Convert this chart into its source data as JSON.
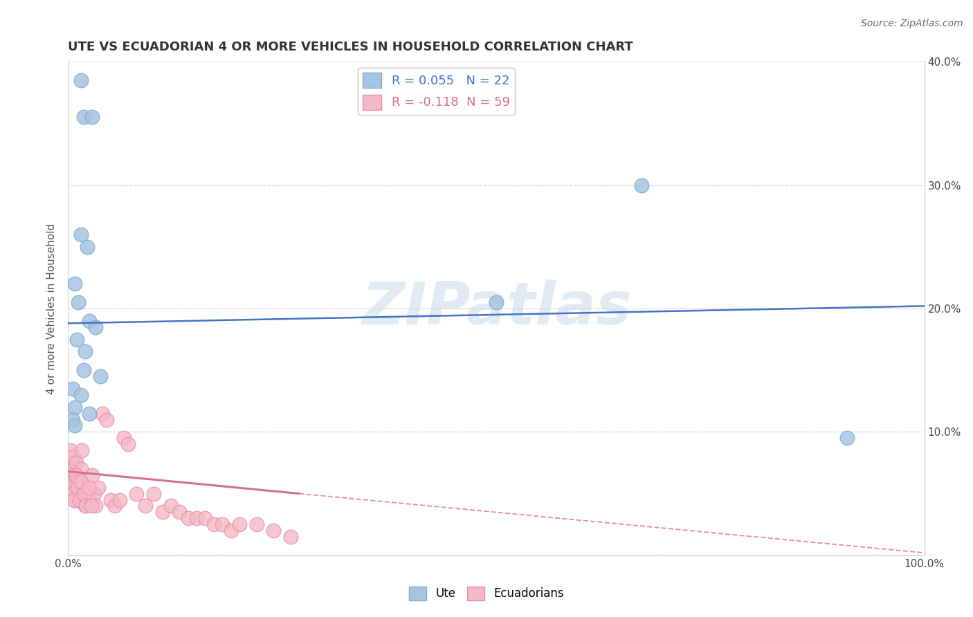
{
  "title": "UTE VS ECUADORIAN 4 OR MORE VEHICLES IN HOUSEHOLD CORRELATION CHART",
  "source_text": "Source: ZipAtlas.com",
  "xlabel": "",
  "ylabel": "4 or more Vehicles in Household",
  "xlim": [
    0,
    100
  ],
  "ylim": [
    0,
    40
  ],
  "xticks": [
    0,
    10,
    20,
    30,
    40,
    50,
    60,
    70,
    80,
    90,
    100
  ],
  "yticks": [
    0,
    10,
    20,
    30,
    40
  ],
  "xtick_labels": [
    "0.0%",
    "",
    "",
    "",
    "",
    "",
    "",
    "",
    "",
    "",
    "100.0%"
  ],
  "ytick_labels_right": [
    "",
    "10.0%",
    "20.0%",
    "30.0%",
    "40.0%"
  ],
  "blue_color": "#a8c4e0",
  "pink_color": "#f4b8c8",
  "blue_edge": "#7bafd4",
  "pink_edge": "#e890aa",
  "blue_line_color": "#4472c4",
  "pink_line_color": "#d4708a",
  "r_blue": 0.055,
  "n_blue": 22,
  "r_pink": -0.118,
  "n_pink": 59,
  "watermark": "ZIPatlas",
  "blue_line_x0": 0,
  "blue_line_y0": 18.8,
  "blue_line_x1": 100,
  "blue_line_y1": 20.2,
  "pink_line_solid_x0": 0,
  "pink_line_solid_y0": 6.8,
  "pink_line_solid_x1": 27,
  "pink_line_solid_y1": 5.0,
  "pink_line_dash_x0": 27,
  "pink_line_dash_y0": 5.0,
  "pink_line_dash_x1": 100,
  "pink_line_dash_y1": 0.2,
  "blue_scatter_x": [
    1.5,
    1.8,
    2.8,
    1.5,
    2.2,
    0.8,
    1.2,
    2.5,
    3.2,
    1.0,
    2.0,
    1.8,
    3.8,
    0.5,
    1.5,
    0.8,
    2.5,
    0.5,
    0.8,
    50.0,
    67.0,
    91.0
  ],
  "blue_scatter_y": [
    38.5,
    35.5,
    35.5,
    26.0,
    25.0,
    22.0,
    20.5,
    19.0,
    18.5,
    17.5,
    16.5,
    15.0,
    14.5,
    13.5,
    13.0,
    12.0,
    11.5,
    11.0,
    10.5,
    20.5,
    30.0,
    9.5
  ],
  "pink_scatter_x": [
    0.2,
    0.3,
    0.4,
    0.5,
    0.5,
    0.6,
    0.7,
    0.8,
    0.9,
    1.0,
    1.0,
    1.1,
    1.2,
    1.3,
    1.4,
    1.5,
    1.6,
    1.8,
    2.0,
    2.2,
    2.5,
    2.8,
    3.0,
    3.2,
    3.5,
    4.0,
    4.5,
    5.0,
    5.5,
    6.0,
    6.5,
    7.0,
    8.0,
    9.0,
    10.0,
    11.0,
    12.0,
    13.0,
    14.0,
    15.0,
    16.0,
    17.0,
    18.0,
    19.0,
    20.0,
    22.0,
    24.0,
    26.0,
    0.3,
    0.5,
    0.7,
    0.9,
    1.1,
    1.3,
    1.5,
    1.8,
    2.1,
    2.4,
    2.7
  ],
  "pink_scatter_y": [
    7.5,
    8.5,
    6.5,
    7.0,
    5.5,
    8.0,
    6.0,
    5.5,
    7.5,
    6.0,
    4.5,
    5.5,
    6.0,
    5.0,
    4.5,
    7.0,
    8.5,
    5.5,
    4.0,
    5.0,
    4.5,
    6.5,
    5.0,
    4.0,
    5.5,
    11.5,
    11.0,
    4.5,
    4.0,
    4.5,
    9.5,
    9.0,
    5.0,
    4.0,
    5.0,
    3.5,
    4.0,
    3.5,
    3.0,
    3.0,
    3.0,
    2.5,
    2.5,
    2.0,
    2.5,
    2.5,
    2.0,
    1.5,
    5.5,
    5.0,
    4.5,
    6.5,
    5.5,
    4.5,
    6.0,
    5.0,
    4.0,
    5.5,
    4.0
  ]
}
